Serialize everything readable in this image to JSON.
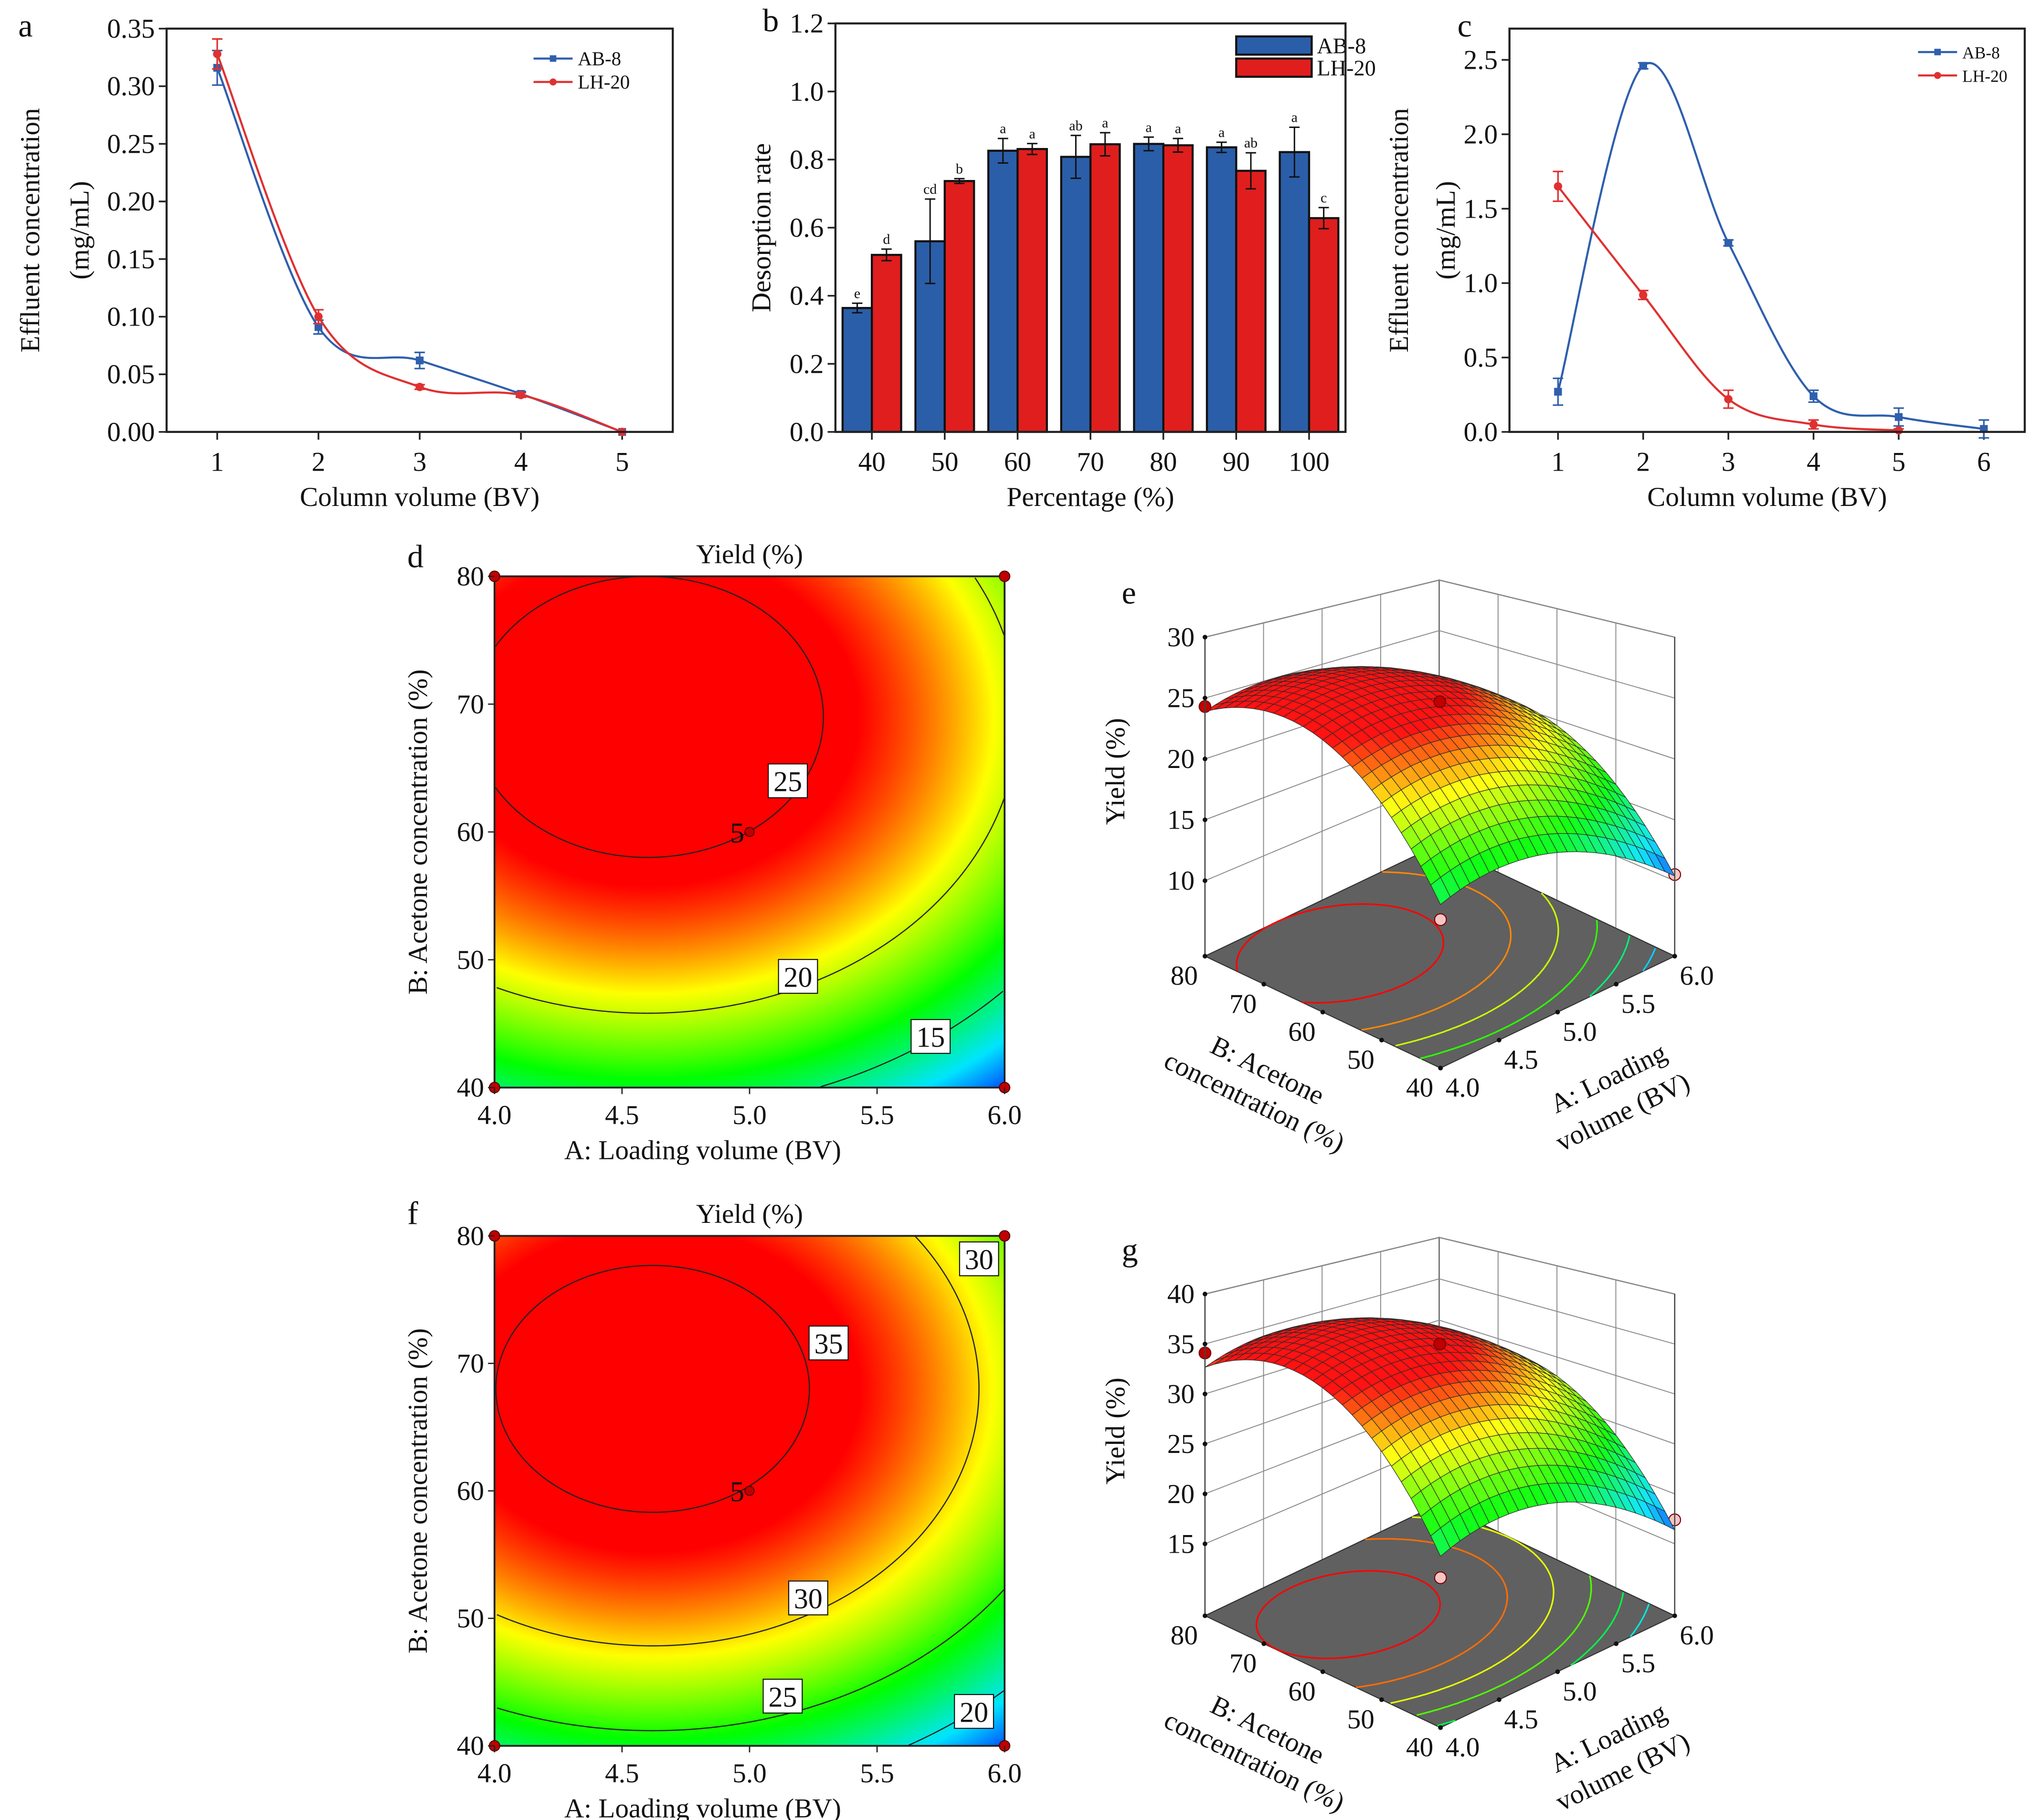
{
  "figure": {
    "panel_labels": [
      "a",
      "b",
      "c",
      "d",
      "e",
      "f",
      "g"
    ]
  },
  "chart_data": [
    {
      "panel": "a",
      "type": "line",
      "xlabel": "Column volume (BV)",
      "ylabel_lines": [
        "Effluent concentration",
        "(mg/mL)"
      ],
      "xlim": [
        0.5,
        5.5
      ],
      "ylim": [
        0,
        0.35
      ],
      "xticks": [
        "1",
        "2",
        "3",
        "4",
        "5"
      ],
      "yticks": [
        "0.00",
        "0.05",
        "0.10",
        "0.15",
        "0.20",
        "0.25",
        "0.30",
        "0.35"
      ],
      "legend": "top-right",
      "grid": false,
      "series": [
        {
          "name": "AB-8",
          "color": "#2f5fad",
          "marker": "square",
          "x": [
            1,
            2,
            3,
            4,
            5
          ],
          "values": [
            0.316,
            0.091,
            0.062,
            0.033,
            0.0
          ],
          "errors": [
            0.015,
            0.006,
            0.007,
            0.002,
            0.0
          ]
        },
        {
          "name": "LH-20",
          "color": "#e03030",
          "marker": "circle",
          "x": [
            1,
            2,
            3,
            4,
            5
          ],
          "values": [
            0.328,
            0.1,
            0.039,
            0.032,
            0.0
          ],
          "errors": [
            0.013,
            0.006,
            0.002,
            0.002,
            0.0
          ]
        }
      ]
    },
    {
      "panel": "b",
      "type": "bar",
      "xlabel": "Percentage (%)",
      "ylabel": "Desorption rate",
      "ylim": [
        0,
        1.2
      ],
      "yticks": [
        "0.0",
        "0.2",
        "0.4",
        "0.6",
        "0.8",
        "1.0",
        "1.2"
      ],
      "categories": [
        "40",
        "50",
        "60",
        "70",
        "80",
        "90",
        "100"
      ],
      "legend": "top-right",
      "grid": false,
      "series": [
        {
          "name": "AB-8",
          "color": "#2b5ea8",
          "values": [
            0.364,
            0.56,
            0.826,
            0.808,
            0.846,
            0.836,
            0.822
          ],
          "errors": [
            0.014,
            0.124,
            0.036,
            0.063,
            0.02,
            0.015,
            0.073
          ],
          "letters": [
            "e",
            "cd",
            "a",
            "ab",
            "a",
            "a",
            "a"
          ]
        },
        {
          "name": "LH-20",
          "color": "#e01e1e",
          "values": [
            0.52,
            0.737,
            0.831,
            0.845,
            0.842,
            0.767,
            0.628
          ],
          "errors": [
            0.017,
            0.007,
            0.016,
            0.034,
            0.02,
            0.053,
            0.031
          ],
          "letters": [
            "d",
            "b",
            "a",
            "a",
            "a",
            "ab",
            "c"
          ]
        }
      ]
    },
    {
      "panel": "c",
      "type": "line",
      "xlabel": "Column volume (BV)",
      "ylabel_lines": [
        "Effluent concentration",
        "(mg/mL)"
      ],
      "xlim": [
        0.43,
        6.48
      ],
      "ylim": [
        0,
        2.71
      ],
      "xticks": [
        "1",
        "2",
        "3",
        "4",
        "5",
        "6"
      ],
      "yticks": [
        "0.0",
        "0.5",
        "1.0",
        "1.5",
        "2.0",
        "2.5"
      ],
      "legend": "top-right",
      "grid": false,
      "series": [
        {
          "name": "AB-8",
          "color": "#2f5fad",
          "marker": "square",
          "x": [
            1,
            2,
            3,
            4,
            5,
            6
          ],
          "values": [
            0.27,
            2.46,
            1.27,
            0.24,
            0.1,
            0.02
          ],
          "errors": [
            0.09,
            0.02,
            0.02,
            0.04,
            0.06,
            0.06
          ]
        },
        {
          "name": "LH-20",
          "color": "#e03030",
          "marker": "circle",
          "x": [
            1,
            2,
            3,
            4,
            5
          ],
          "values": [
            1.65,
            0.92,
            0.22,
            0.05,
            0.01
          ],
          "errors": [
            0.1,
            0.03,
            0.06,
            0.03,
            0.01
          ]
        }
      ]
    },
    {
      "panel": "d",
      "type": "contour",
      "title": "Yield (%)",
      "xlabel": "A: Loading volume (BV)",
      "ylabel": "B: Acetone concentration (%)",
      "xlim": [
        4,
        6
      ],
      "ylim": [
        40,
        80
      ],
      "xticks": [
        "4.0",
        "4.5",
        "5.0",
        "5.5",
        "6.0"
      ],
      "yticks": [
        "40",
        "50",
        "60",
        "70",
        "80"
      ],
      "contour_levels": [
        25,
        20,
        15
      ],
      "contour_labels": [
        {
          "text": "25",
          "x": 5.15,
          "y": 64
        },
        {
          "text": "20",
          "x": 5.19,
          "y": 48.7
        },
        {
          "text": "15",
          "x": 5.71,
          "y": 44
        }
      ],
      "design_points": [
        [
          4,
          40
        ],
        [
          4,
          80
        ],
        [
          6,
          40
        ],
        [
          6,
          80
        ],
        [
          5,
          60
        ]
      ],
      "center_point_label": "5",
      "colormap": [
        "#0050ff",
        "#00e5ff",
        "#00ff00",
        "#ffff00",
        "#ff0000"
      ]
    },
    {
      "panel": "e",
      "type": "surface",
      "zlabel": "Yield (%)",
      "xlabel_lines": [
        "A: Loading",
        "volume (BV)"
      ],
      "ylabel_lines": [
        "B: Acetone",
        "concentration (%)"
      ],
      "xlim": [
        4,
        6
      ],
      "ylim": [
        40,
        80
      ],
      "zlim": [
        3.8,
        30
      ],
      "xticks": [
        "4.0",
        "4.5",
        "5.0",
        "5.5",
        "6.0"
      ],
      "yticks": [
        "40",
        "50",
        "60",
        "70",
        "80"
      ],
      "zticks": [
        "10",
        "15",
        "20",
        "25",
        "30"
      ],
      "floor_contour_levels": [
        25,
        22.5,
        20,
        17.5,
        15,
        12.5
      ],
      "design_points": [
        {
          "A": 4,
          "B": 80,
          "yield": 24.3,
          "color": "#c00000"
        },
        {
          "A": 5,
          "B": 60,
          "yield": 24.7,
          "color": "#c00000"
        },
        {
          "A": 4,
          "B": 40,
          "yield": 14.2,
          "color": "#f7c4c4"
        },
        {
          "A": 6,
          "B": 40,
          "yield": 10.5,
          "color": "#f7c4c4"
        }
      ],
      "floor_color": "#606060",
      "colormap": [
        "#0050ff",
        "#00e5ff",
        "#00ff00",
        "#ffff00",
        "#ff0000"
      ]
    },
    {
      "panel": "f",
      "type": "contour",
      "title": "Yield (%)",
      "xlabel": "A: Loading volume (BV)",
      "ylabel": "B: Acetone concentration (%)",
      "xlim": [
        4,
        6
      ],
      "ylim": [
        40,
        80
      ],
      "xticks": [
        "4.0",
        "4.5",
        "5.0",
        "5.5",
        "6.0"
      ],
      "yticks": [
        "40",
        "50",
        "60",
        "70",
        "80"
      ],
      "contour_levels": [
        35,
        30,
        25,
        20
      ],
      "contour_labels": [
        {
          "text": "35",
          "x": 5.31,
          "y": 71.6
        },
        {
          "text": "30",
          "x": 5.9,
          "y": 78.2
        },
        {
          "text": "30",
          "x": 5.23,
          "y": 51.6
        },
        {
          "text": "25",
          "x": 5.13,
          "y": 43.9
        },
        {
          "text": "20",
          "x": 5.88,
          "y": 42.7
        }
      ],
      "design_points": [
        [
          4,
          40
        ],
        [
          4,
          80
        ],
        [
          6,
          40
        ],
        [
          6,
          80
        ],
        [
          5,
          60
        ]
      ],
      "center_point_label": "5",
      "colormap": [
        "#0050ff",
        "#00e5ff",
        "#00ff00",
        "#ffff00",
        "#ff0000"
      ]
    },
    {
      "panel": "g",
      "type": "surface",
      "zlabel": "Yield (%)",
      "xlabel_lines": [
        "A: Loading",
        "volume (BV)"
      ],
      "ylabel_lines": [
        "B: Acetone",
        "concentration (%)"
      ],
      "xlim": [
        4,
        6
      ],
      "ylim": [
        40,
        80
      ],
      "zlim": [
        7.8,
        40
      ],
      "xticks": [
        "4.0",
        "4.5",
        "5.0",
        "5.5",
        "6.0"
      ],
      "yticks": [
        "40",
        "50",
        "60",
        "70",
        "80"
      ],
      "zticks": [
        "15",
        "20",
        "25",
        "30",
        "35",
        "40"
      ],
      "floor_contour_levels": [
        35,
        32,
        29,
        26,
        23,
        20
      ],
      "design_points": [
        {
          "A": 4,
          "B": 80,
          "yield": 34.1,
          "color": "#c00000"
        },
        {
          "A": 5,
          "B": 60,
          "yield": 35.0,
          "color": "#c00000"
        },
        {
          "A": 4,
          "B": 40,
          "yield": 20.6,
          "color": "#f7c4c4"
        },
        {
          "A": 6,
          "B": 40,
          "yield": 17.4,
          "color": "#f7c4c4"
        }
      ],
      "floor_color": "#606060",
      "colormap": [
        "#0050ff",
        "#00e5ff",
        "#00ff00",
        "#ffff00",
        "#ff0000"
      ]
    }
  ]
}
